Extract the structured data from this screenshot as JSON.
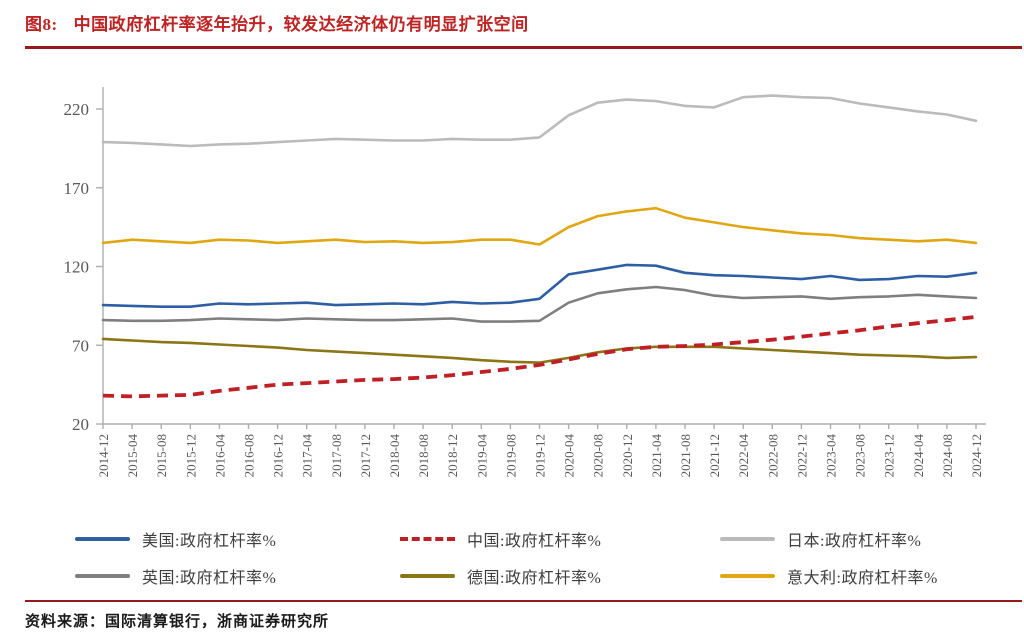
{
  "figure": {
    "tag": "图8:",
    "title": "中国政府杠杆率逐年抬升，较发达经济体仍有明显扩张空间",
    "source_label": "资料来源：",
    "source_text": "国际清算银行，浙商证券研究所"
  },
  "colors": {
    "title_red": "#BE2323",
    "rule_red": "#951A1C",
    "axis_gray": "#ADADAD",
    "tick_text_gray": "#595959"
  },
  "chart_data": {
    "type": "line",
    "title": "",
    "xlabel": "",
    "ylabel": "政府杠杆率 %",
    "ylim": [
      20,
      230
    ],
    "yticks": [
      20,
      70,
      120,
      170,
      220
    ],
    "grid": false,
    "legend_position": "bottom",
    "categories": [
      "2014-12",
      "2015-04",
      "2015-08",
      "2015-12",
      "2016-04",
      "2016-08",
      "2016-12",
      "2017-04",
      "2017-08",
      "2017-12",
      "2018-04",
      "2018-08",
      "2018-12",
      "2019-04",
      "2019-08",
      "2019-12",
      "2020-04",
      "2020-08",
      "2020-12",
      "2021-04",
      "2021-08",
      "2021-12",
      "2022-04",
      "2022-08",
      "2022-12",
      "2023-04",
      "2023-08",
      "2023-12",
      "2024-04",
      "2024-08",
      "2024-12"
    ],
    "series": [
      {
        "name": "美国:政府杠杆率%",
        "color": "#2E5EA3",
        "style": "solid",
        "z": 3,
        "values": [
          95.5,
          95,
          94.5,
          94.5,
          96.5,
          96,
          96.5,
          97,
          95.5,
          96,
          96.5,
          96,
          97.5,
          96.5,
          97,
          99.5,
          115,
          118,
          121,
          120.5,
          116,
          114.5,
          114,
          113,
          112,
          114,
          111.5,
          112,
          114,
          113.5,
          116
        ]
      },
      {
        "name": "中国:政府杠杆率%",
        "color": "#BF2026",
        "style": "dashed",
        "z": 6,
        "values": [
          38,
          37.5,
          38,
          38.5,
          41,
          43,
          45,
          46,
          47,
          48,
          48.5,
          49.5,
          51,
          53,
          55,
          57.5,
          61,
          64.5,
          67.5,
          69,
          69.5,
          70.5,
          72,
          73.5,
          75.5,
          77.5,
          79.5,
          82,
          84,
          86,
          88
        ]
      },
      {
        "name": "日本:政府杠杆率%",
        "color": "#BBBBBB",
        "style": "solid",
        "z": 1,
        "values": [
          199,
          198.5,
          197.5,
          196.5,
          197.5,
          198,
          199,
          200,
          201,
          200.5,
          200,
          200,
          201,
          200.5,
          200.5,
          202,
          216,
          224,
          226,
          225,
          222,
          221,
          227.5,
          228.5,
          227.5,
          227,
          223.5,
          221,
          218.5,
          216.5,
          212.5
        ]
      },
      {
        "name": "英国:政府杠杆率%",
        "color": "#7F7F7F",
        "style": "solid",
        "z": 4,
        "values": [
          86,
          85.5,
          85.5,
          86,
          87,
          86.5,
          86,
          87,
          86.5,
          86,
          86,
          86.5,
          87,
          85,
          85,
          85.5,
          97,
          103,
          105.5,
          107,
          105,
          101.5,
          100,
          100.5,
          101,
          99.5,
          100.5,
          101,
          102,
          101,
          100
        ]
      },
      {
        "name": "德国:政府杠杆率%",
        "color": "#8A7616",
        "style": "solid",
        "z": 5,
        "values": [
          74,
          73,
          72,
          71.5,
          70.5,
          69.5,
          68.5,
          67,
          66,
          65,
          64,
          63,
          62,
          60.5,
          59.5,
          59,
          62,
          65.5,
          68,
          69,
          69,
          69,
          68,
          67,
          66,
          65,
          64,
          63.5,
          63,
          62,
          62.5
        ]
      },
      {
        "name": "意大利:政府杠杆率%",
        "color": "#E0A712",
        "style": "solid",
        "z": 2,
        "values": [
          135,
          137,
          136,
          135,
          137,
          136.5,
          135,
          136,
          137,
          135.5,
          136,
          135,
          135.5,
          137,
          137,
          134,
          145,
          152,
          155,
          157,
          151,
          148,
          145,
          143,
          141,
          140,
          138,
          137,
          136,
          137,
          135
        ]
      }
    ]
  }
}
